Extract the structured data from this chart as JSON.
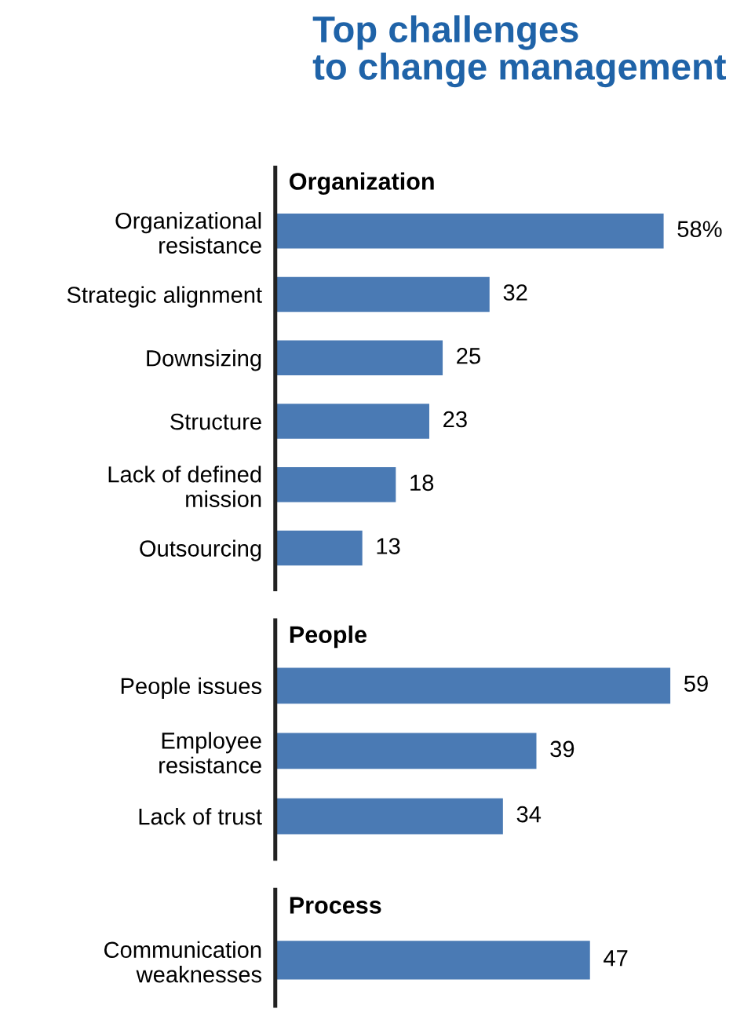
{
  "chart_data": [
    {
      "type": "bar",
      "orientation": "horizontal",
      "title": "Top challenges\nto change management",
      "subtitle": "Organization",
      "categories": [
        "Organizational\nresistance",
        "Strategic alignment",
        "Downsizing",
        "Structure",
        "Lack of defined\nmission",
        "Outsourcing"
      ],
      "values": [
        58,
        32,
        25,
        23,
        18,
        13
      ],
      "value_labels": [
        "58%",
        "32",
        "25",
        "23",
        "18",
        "13"
      ],
      "color": "#4a7ab4",
      "tick_labels": "y",
      "grid": false,
      "legend": false
    },
    {
      "type": "bar",
      "orientation": "horizontal",
      "subtitle": "People",
      "categories": [
        "People issues",
        "Employee\nresistance",
        "Lack of trust"
      ],
      "values": [
        59,
        39,
        34
      ],
      "value_labels": [
        "59",
        "39",
        "34"
      ],
      "color": "#4a7ab4",
      "tick_labels": "y",
      "grid": false,
      "legend": false
    },
    {
      "type": "bar",
      "orientation": "horizontal",
      "subtitle": "Process",
      "categories": [
        "Communication\nweaknesses"
      ],
      "values": [
        47
      ],
      "value_labels": [
        "47"
      ],
      "color": "#4a7ab4",
      "tick_labels": "y",
      "grid": false,
      "legend": false
    }
  ]
}
